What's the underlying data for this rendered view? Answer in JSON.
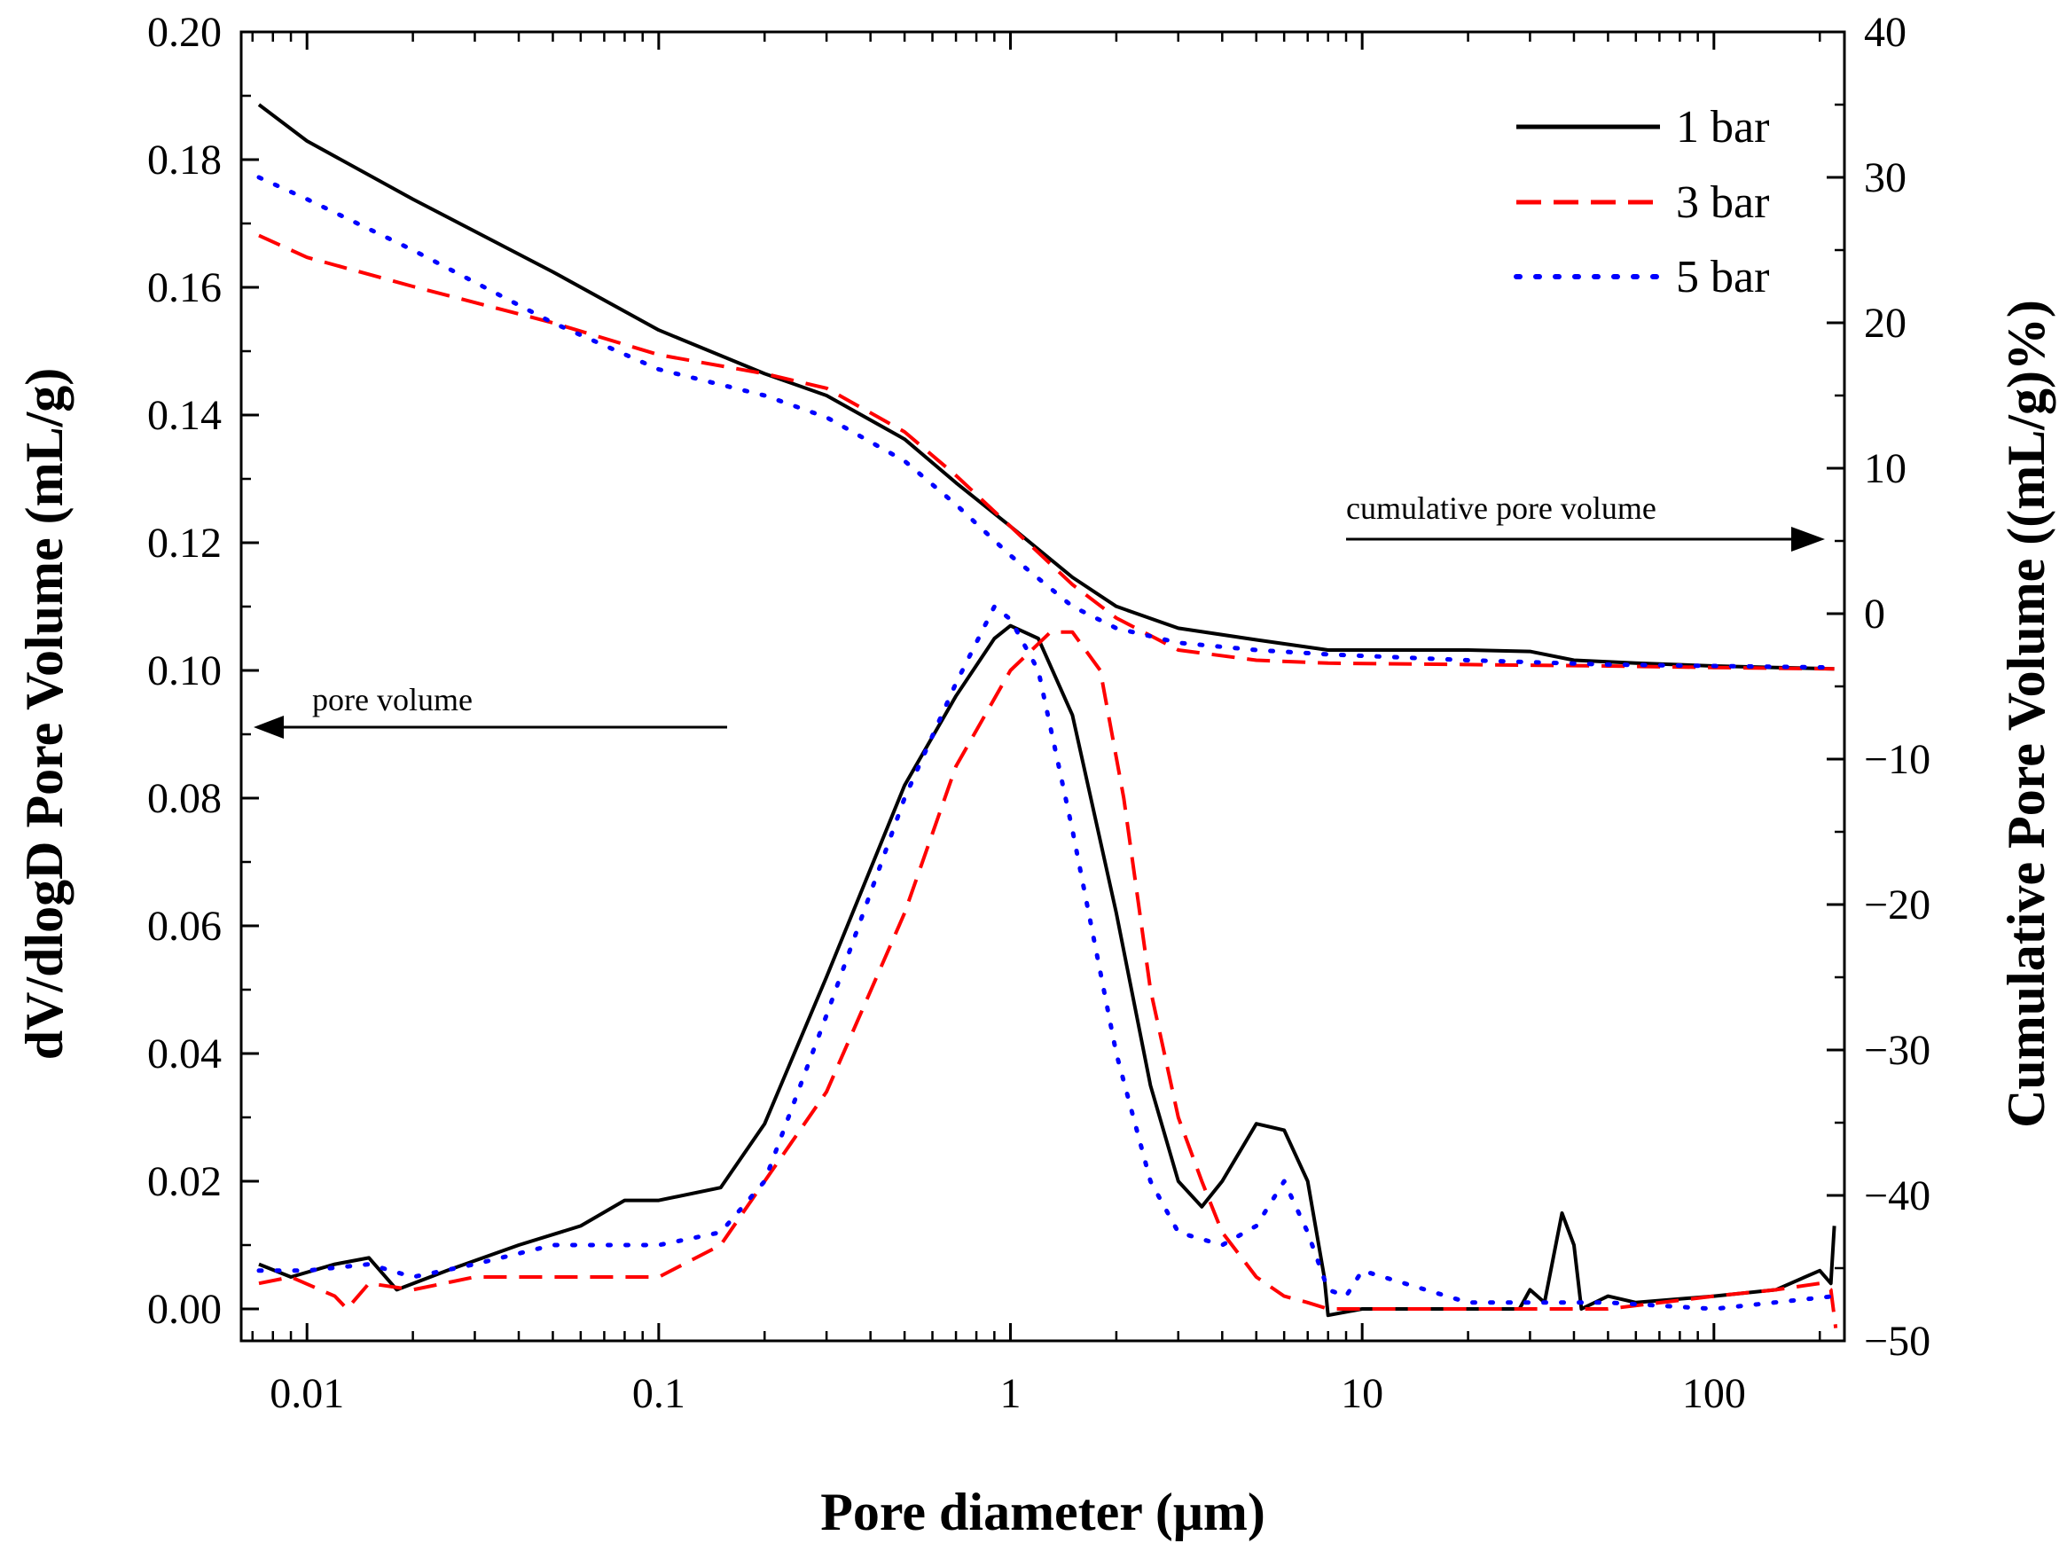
{
  "chart_data": {
    "type": "line",
    "x_scale": "log",
    "xlabel": "Pore diameter (μm)",
    "ylabel_left": "dV/dlogD Pore Volume (mL/g)",
    "ylabel_right": "Cumulative Pore Volume ((mL/g)%)",
    "xlim": [
      0.0065,
      235
    ],
    "ylim_left": [
      -0.005,
      0.2
    ],
    "ylim_right": [
      -50,
      40
    ],
    "x_ticks": [
      0.01,
      0.1,
      1,
      10,
      100
    ],
    "x_tick_labels": [
      "0.01",
      "0.1",
      "1",
      "10",
      "100"
    ],
    "y_left_ticks": [
      0.0,
      0.02,
      0.04,
      0.06,
      0.08,
      0.1,
      0.12,
      0.14,
      0.16,
      0.18,
      0.2
    ],
    "y_left_tick_labels": [
      "0.00",
      "0.02",
      "0.04",
      "0.06",
      "0.08",
      "0.10",
      "0.12",
      "0.14",
      "0.16",
      "0.18",
      "0.20"
    ],
    "y_right_ticks": [
      -50,
      -40,
      -30,
      -20,
      -10,
      0,
      10,
      20,
      30,
      40
    ],
    "y_right_tick_labels": [
      "−50",
      "−40",
      "−30",
      "−20",
      "−10",
      "0",
      "10",
      "20",
      "30",
      "40"
    ],
    "grid": false,
    "legend_position": "top-right",
    "legend": [
      {
        "label": "1 bar",
        "color": "#000000",
        "style": "solid"
      },
      {
        "label": "3 bar",
        "color": "#ff0000",
        "style": "dashed"
      },
      {
        "label": "5 bar",
        "color": "#0000ff",
        "style": "dotted"
      }
    ],
    "annotations": [
      {
        "text": "pore volume",
        "arrow_direction": "left",
        "axis": "left"
      },
      {
        "text": "cumulative pore volume",
        "arrow_direction": "right",
        "axis": "right"
      }
    ],
    "series": [
      {
        "name": "1 bar",
        "kind": "cumulative",
        "axis": "right",
        "color": "#000000",
        "style": "solid",
        "x": [
          0.0073,
          0.01,
          0.02,
          0.05,
          0.1,
          0.2,
          0.3,
          0.5,
          0.7,
          1.0,
          1.5,
          2.0,
          3.0,
          5.0,
          8.0,
          12,
          20,
          30,
          40,
          60,
          100,
          150,
          220
        ],
        "y": [
          35.0,
          32.5,
          28.5,
          23.5,
          19.5,
          16.5,
          15.0,
          12.0,
          9.0,
          6.0,
          2.5,
          0.5,
          -1.0,
          -1.8,
          -2.5,
          -2.5,
          -2.5,
          -2.6,
          -3.2,
          -3.4,
          -3.6,
          -3.7,
          -3.8
        ]
      },
      {
        "name": "3 bar",
        "kind": "cumulative",
        "axis": "right",
        "color": "#ff0000",
        "style": "dashed",
        "x": [
          0.0073,
          0.01,
          0.02,
          0.05,
          0.1,
          0.2,
          0.3,
          0.5,
          0.7,
          1.0,
          1.5,
          2.0,
          3.0,
          5.0,
          8.0,
          20,
          50,
          100,
          220
        ],
        "y": [
          26.0,
          24.5,
          22.5,
          20.0,
          17.8,
          16.5,
          15.5,
          12.5,
          9.5,
          6.0,
          2.0,
          -0.3,
          -2.5,
          -3.2,
          -3.4,
          -3.5,
          -3.6,
          -3.7,
          -3.8
        ]
      },
      {
        "name": "5 bar",
        "kind": "cumulative",
        "axis": "right",
        "color": "#0000ff",
        "style": "dotted",
        "x": [
          0.0073,
          0.01,
          0.02,
          0.05,
          0.1,
          0.2,
          0.3,
          0.5,
          0.7,
          1.0,
          1.5,
          2.0,
          3.0,
          5.0,
          8.0,
          20,
          50,
          100,
          220
        ],
        "y": [
          30.0,
          28.5,
          25.0,
          20.0,
          16.8,
          15.0,
          13.5,
          10.5,
          7.5,
          4.0,
          0.5,
          -1.0,
          -2.0,
          -2.5,
          -2.8,
          -3.2,
          -3.5,
          -3.6,
          -3.7
        ]
      },
      {
        "name": "1 bar",
        "kind": "distribution",
        "axis": "left",
        "color": "#000000",
        "style": "solid",
        "x": [
          0.0073,
          0.009,
          0.012,
          0.015,
          0.018,
          0.025,
          0.04,
          0.06,
          0.08,
          0.1,
          0.15,
          0.2,
          0.3,
          0.5,
          0.7,
          0.9,
          1.0,
          1.2,
          1.5,
          2.0,
          2.5,
          3.0,
          3.5,
          4.0,
          5.0,
          6.0,
          7.0,
          7.8,
          8.0,
          10,
          20,
          28,
          30,
          33,
          37,
          40,
          42,
          50,
          60,
          100,
          150,
          200,
          215,
          220
        ],
        "y": [
          0.007,
          0.005,
          0.007,
          0.008,
          0.003,
          0.006,
          0.01,
          0.013,
          0.017,
          0.017,
          0.019,
          0.029,
          0.052,
          0.082,
          0.096,
          0.105,
          0.107,
          0.105,
          0.093,
          0.062,
          0.035,
          0.02,
          0.016,
          0.02,
          0.029,
          0.028,
          0.02,
          0.005,
          -0.001,
          0.0,
          0.0,
          0.0,
          0.003,
          0.001,
          0.015,
          0.01,
          0.0,
          0.002,
          0.001,
          0.002,
          0.003,
          0.006,
          0.004,
          0.013
        ]
      },
      {
        "name": "3 bar",
        "kind": "distribution",
        "axis": "left",
        "color": "#ff0000",
        "style": "dashed",
        "x": [
          0.0073,
          0.009,
          0.012,
          0.013,
          0.015,
          0.02,
          0.03,
          0.04,
          0.06,
          0.08,
          0.1,
          0.15,
          0.2,
          0.3,
          0.5,
          0.7,
          1.0,
          1.3,
          1.5,
          1.8,
          2.1,
          2.5,
          3.0,
          3.5,
          4.0,
          5.0,
          6.0,
          7.0,
          8.0,
          20,
          50,
          100,
          150,
          200,
          215,
          222
        ],
        "y": [
          0.004,
          0.005,
          0.002,
          0.0,
          0.004,
          0.003,
          0.005,
          0.005,
          0.005,
          0.005,
          0.005,
          0.01,
          0.02,
          0.034,
          0.062,
          0.085,
          0.1,
          0.106,
          0.106,
          0.1,
          0.08,
          0.05,
          0.03,
          0.02,
          0.012,
          0.005,
          0.002,
          0.001,
          0.0,
          0.0,
          0.0,
          0.002,
          0.003,
          0.004,
          0.003,
          -0.003
        ]
      },
      {
        "name": "5 bar",
        "kind": "distribution",
        "axis": "left",
        "color": "#0000ff",
        "style": "dotted",
        "x": [
          0.0073,
          0.01,
          0.015,
          0.02,
          0.03,
          0.05,
          0.08,
          0.1,
          0.15,
          0.2,
          0.3,
          0.5,
          0.7,
          0.9,
          1.0,
          1.2,
          1.5,
          2.0,
          2.5,
          3.0,
          4.0,
          5.0,
          6.0,
          7.0,
          8.0,
          9.0,
          10,
          20,
          50,
          100,
          220
        ],
        "y": [
          0.006,
          0.006,
          0.007,
          0.005,
          0.007,
          0.01,
          0.01,
          0.01,
          0.012,
          0.02,
          0.046,
          0.08,
          0.098,
          0.11,
          0.108,
          0.1,
          0.075,
          0.04,
          0.02,
          0.012,
          0.01,
          0.013,
          0.02,
          0.012,
          0.003,
          0.002,
          0.006,
          0.001,
          0.001,
          0.0,
          0.002
        ]
      }
    ]
  }
}
